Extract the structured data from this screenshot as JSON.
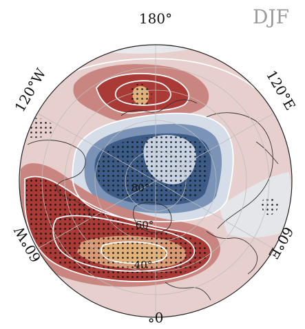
{
  "season_label": "DJF",
  "longitude_labels": {
    "lon_180": "180°",
    "lon_120e": "120°E",
    "lon_60e": "60°E",
    "lon_0": "0°",
    "lon_60w": "60°W",
    "lon_120w": "120°W"
  },
  "latitude_labels": {
    "lat_80": "80°",
    "lat_60": "60°",
    "lat_40": "40°"
  },
  "colors": {
    "strong_positive": "#a93a35",
    "moderate_positive": "#c98580",
    "weak_positive": "#e6cfcd",
    "peak_positive": "#e0b27a",
    "strong_negative": "#3c5b86",
    "moderate_negative": "#7a93b6",
    "weak_negative": "#d5dde8",
    "grid_line": "#bdbdbd",
    "coastline": "#333333",
    "significance_dot": "#111111"
  }
}
